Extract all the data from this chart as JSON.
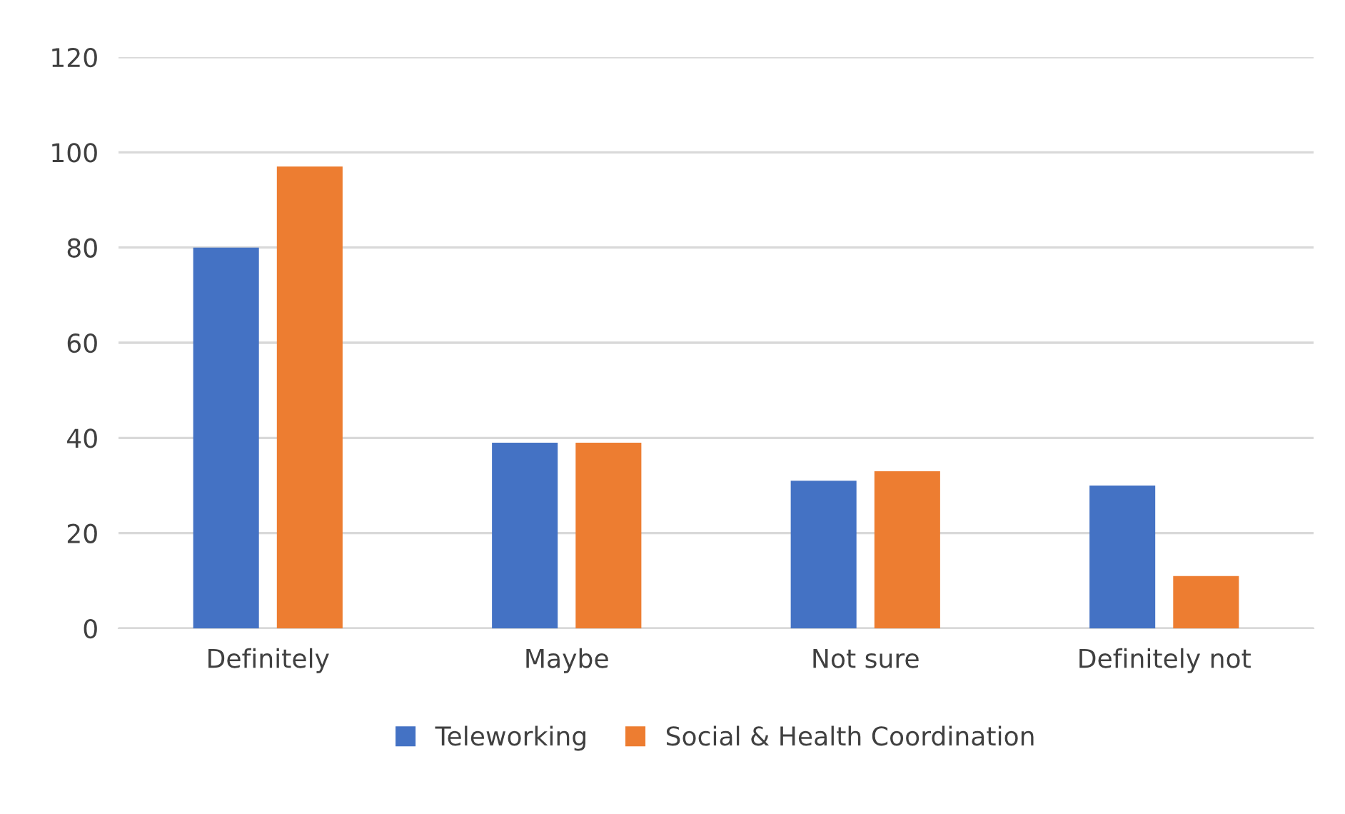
{
  "chart_data": {
    "type": "bar",
    "categories": [
      "Definitely",
      "Maybe",
      "Not sure",
      "Definitely not"
    ],
    "series": [
      {
        "name": "Teleworking",
        "color": "#4472c4",
        "values": [
          80,
          39,
          31,
          30
        ]
      },
      {
        "name": "Social & Health Coordination",
        "color": "#ed7d31",
        "values": [
          97,
          39,
          33,
          11
        ]
      }
    ],
    "ylim": [
      0,
      120
    ],
    "yticks": [
      0,
      20,
      40,
      60,
      80,
      100,
      120
    ],
    "grid": "y",
    "legend": "bottom"
  }
}
